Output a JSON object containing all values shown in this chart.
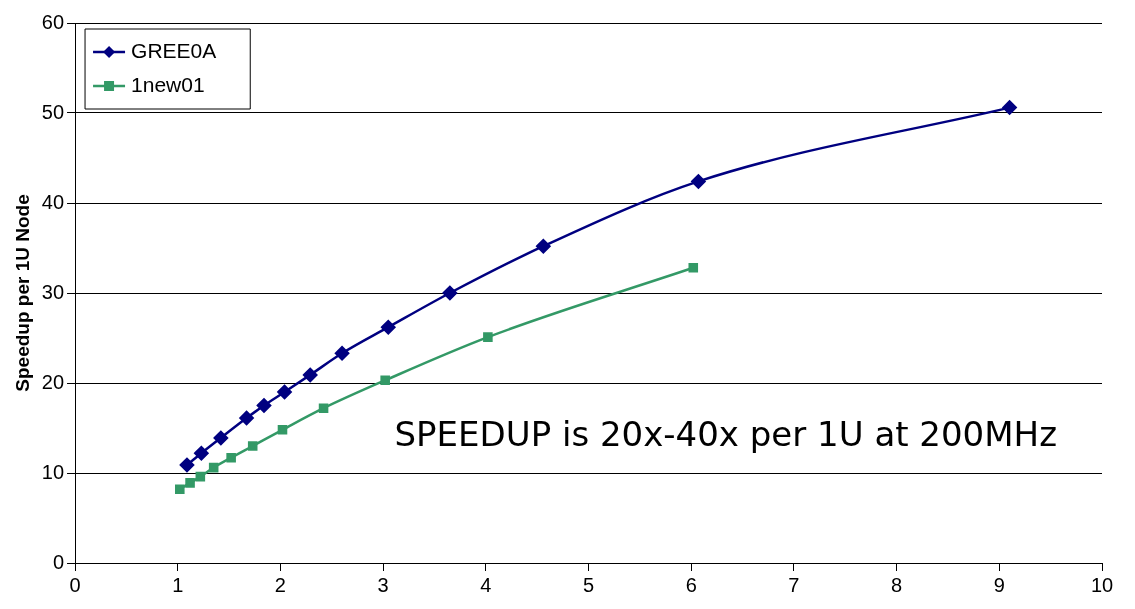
{
  "chart_data": {
    "type": "line",
    "ylabel": "Speedup per 1U Node",
    "annotations": [
      "SPEEDUP is 20x-40x per 1U at 200MHz"
    ],
    "series": [
      {
        "name": "GREE0A",
        "color": "#000080",
        "marker": "diamond",
        "x": [
          1.09,
          1.23,
          1.42,
          1.67,
          1.84,
          2.04,
          2.29,
          2.6,
          3.05,
          3.65,
          4.56,
          6.07,
          9.1
        ],
        "values": [
          10.9,
          12.2,
          13.9,
          16.1,
          17.5,
          19.0,
          20.9,
          23.3,
          26.2,
          30.0,
          35.2,
          42.4,
          50.6
        ]
      },
      {
        "name": "1new01",
        "color": "#339966",
        "marker": "square",
        "x": [
          1.02,
          1.12,
          1.22,
          1.35,
          1.52,
          1.73,
          2.02,
          2.42,
          3.02,
          4.02,
          6.02
        ],
        "values": [
          8.2,
          8.9,
          9.6,
          10.6,
          11.7,
          13.0,
          14.8,
          17.2,
          20.3,
          25.1,
          32.8
        ]
      }
    ],
    "xlim": [
      0,
      10
    ],
    "xticks": [
      0,
      1,
      2,
      3,
      4,
      5,
      6,
      7,
      8,
      9,
      10
    ],
    "ylim": [
      0,
      60
    ],
    "yticks": [
      0,
      10,
      20,
      30,
      40,
      50,
      60
    ],
    "grid": "y",
    "legend": "top left"
  }
}
